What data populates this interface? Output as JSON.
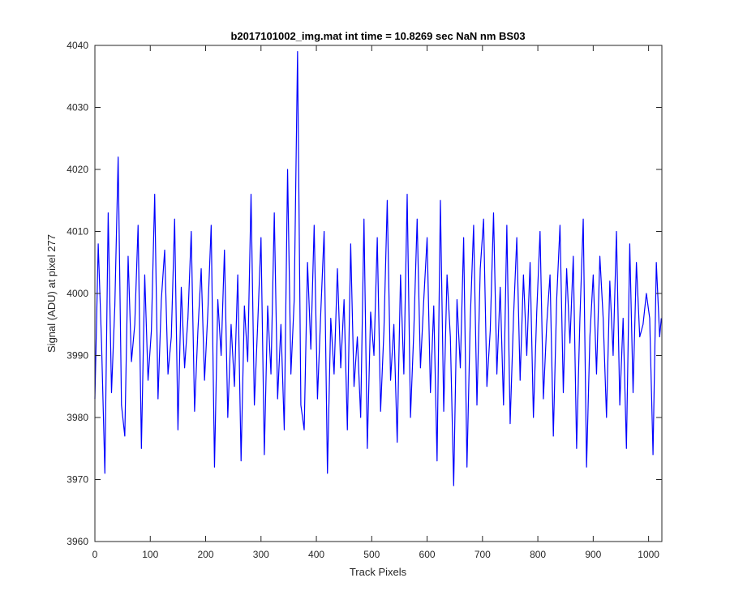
{
  "chart_data": {
    "type": "line",
    "title": "b2017101002_img.mat int time = 10.8269 sec  NaN nm BS03",
    "xlabel": "Track Pixels",
    "ylabel": "Signal (ADU) at pixel 277",
    "xlim": [
      0,
      1024
    ],
    "ylim": [
      3960,
      4040
    ],
    "xticks": [
      0,
      100,
      200,
      300,
      400,
      500,
      600,
      700,
      800,
      900,
      1000
    ],
    "yticks": [
      3960,
      3970,
      3980,
      3990,
      4000,
      4010,
      4020,
      4030,
      4040
    ],
    "grid": false,
    "legend": "none",
    "series": [
      {
        "color": "#0000ff",
        "x": [
          0,
          6,
          12,
          18,
          24,
          30,
          36,
          42,
          48,
          54,
          60,
          66,
          72,
          78,
          84,
          90,
          96,
          102,
          108,
          114,
          120,
          126,
          132,
          138,
          144,
          150,
          156,
          162,
          168,
          174,
          180,
          186,
          192,
          198,
          204,
          210,
          216,
          222,
          228,
          234,
          240,
          246,
          252,
          258,
          264,
          270,
          276,
          282,
          288,
          294,
          300,
          306,
          312,
          318,
          324,
          330,
          336,
          342,
          348,
          354,
          360,
          366,
          372,
          378,
          384,
          390,
          396,
          402,
          408,
          414,
          420,
          426,
          432,
          438,
          444,
          450,
          456,
          462,
          468,
          474,
          480,
          486,
          492,
          498,
          504,
          510,
          516,
          522,
          528,
          534,
          540,
          546,
          552,
          558,
          564,
          570,
          576,
          582,
          588,
          594,
          600,
          606,
          612,
          618,
          624,
          630,
          636,
          642,
          648,
          654,
          660,
          666,
          672,
          678,
          684,
          690,
          696,
          702,
          708,
          714,
          720,
          726,
          732,
          738,
          744,
          750,
          756,
          762,
          768,
          774,
          780,
          786,
          792,
          798,
          804,
          810,
          816,
          822,
          828,
          834,
          840,
          846,
          852,
          858,
          864,
          870,
          876,
          882,
          888,
          894,
          900,
          906,
          912,
          918,
          924,
          930,
          936,
          942,
          948,
          954,
          960,
          966,
          972,
          978,
          984,
          990,
          996,
          1002,
          1008,
          1014,
          1020,
          1023
        ],
        "y": [
          3983,
          4008,
          3992,
          3971,
          4013,
          3984,
          3998,
          4022,
          3982,
          3977,
          4006,
          3989,
          3995,
          4011,
          3975,
          4003,
          3986,
          3994,
          4016,
          3983,
          3999,
          4007,
          3987,
          3993,
          4012,
          3978,
          4001,
          3988,
          3996,
          4010,
          3981,
          3994,
          4004,
          3986,
          3997,
          4011,
          3972,
          3999,
          3990,
          4007,
          3980,
          3995,
          3985,
          4003,
          3973,
          3998,
          3989,
          4016,
          3982,
          3995,
          4009,
          3974,
          3998,
          3987,
          4013,
          3983,
          3995,
          3978,
          4020,
          3987,
          3999,
          4039,
          3982,
          3978,
          4005,
          3991,
          4011,
          3983,
          3997,
          4010,
          3971,
          3996,
          3987,
          4004,
          3988,
          3999,
          3978,
          4008,
          3985,
          3993,
          3980,
          4012,
          3975,
          3997,
          3990,
          4009,
          3981,
          3994,
          4015,
          3986,
          3995,
          3976,
          4003,
          3987,
          4016,
          3980,
          3994,
          4012,
          3988,
          3999,
          4009,
          3984,
          3998,
          3973,
          4015,
          3981,
          4003,
          3993,
          3969,
          3999,
          3988,
          4009,
          3972,
          3996,
          4011,
          3982,
          4004,
          4012,
          3985,
          3994,
          4013,
          3987,
          4001,
          3982,
          4011,
          3979,
          3996,
          4009,
          3986,
          4003,
          3990,
          4005,
          3980,
          3997,
          4010,
          3983,
          3995,
          4003,
          3977,
          3999,
          4011,
          3984,
          4004,
          3992,
          4006,
          3975,
          3996,
          4012,
          3972,
          3993,
          4003,
          3987,
          4006,
          3996,
          3980,
          4002,
          3990,
          4010,
          3982,
          3996,
          3975,
          4008,
          3984,
          4005,
          3993,
          3995,
          4000,
          3996,
          3974,
          4005,
          3993,
          3996
        ]
      }
    ]
  }
}
